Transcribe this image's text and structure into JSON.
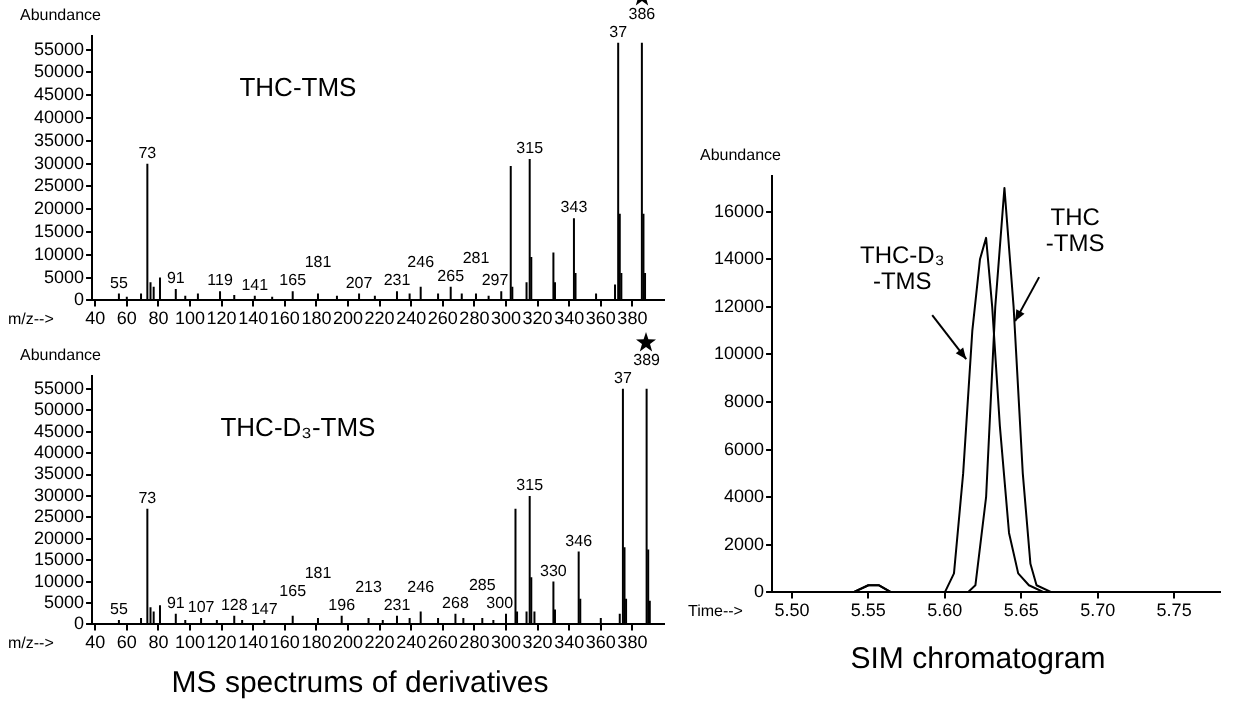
{
  "chart_data": [
    {
      "type": "bar",
      "title": "THC-TMS",
      "ylabel": "Abundance",
      "xlabel": "m/z-->",
      "color": "#000000",
      "grid": false,
      "x": [
        55,
        60,
        69,
        73,
        75,
        77,
        81,
        91,
        97,
        105,
        119,
        128,
        141,
        152,
        165,
        181,
        193,
        207,
        217,
        231,
        239,
        246,
        257,
        265,
        272,
        281,
        289,
        297,
        303,
        304,
        313,
        315,
        316,
        330,
        331,
        343,
        344,
        357,
        369,
        371,
        372,
        373,
        386,
        387,
        388
      ],
      "values": [
        1500,
        800,
        1500,
        30000,
        4000,
        3000,
        5000,
        2500,
        1000,
        1500,
        2000,
        1200,
        1000,
        800,
        2000,
        1500,
        1000,
        1500,
        1000,
        2000,
        1500,
        3000,
        1500,
        3000,
        1500,
        1500,
        1000,
        2000,
        29500,
        3000,
        4000,
        31000,
        9500,
        10500,
        4000,
        18000,
        6000,
        1500,
        3500,
        56500,
        19000,
        6000,
        56500,
        19000,
        6000
      ],
      "xlim": [
        38,
        400
      ],
      "xticks": [
        40,
        60,
        80,
        100,
        120,
        140,
        160,
        180,
        200,
        220,
        240,
        260,
        280,
        300,
        320,
        340,
        360,
        380
      ],
      "ylim": [
        0,
        58000
      ],
      "yticks": [
        0,
        5000,
        10000,
        15000,
        20000,
        25000,
        30000,
        35000,
        40000,
        45000,
        50000,
        55000
      ],
      "annotations": [
        {
          "text": "55",
          "x": 55,
          "y": 1500
        },
        {
          "text": "73",
          "x": 73,
          "y": 30000
        },
        {
          "text": "91",
          "x": 91,
          "y": 2500
        },
        {
          "text": "119",
          "x": 119,
          "y": 2000
        },
        {
          "text": "141",
          "x": 141,
          "y": 1000
        },
        {
          "text": "165",
          "x": 165,
          "y": 2000
        },
        {
          "text": "181",
          "x": 181,
          "y": 1500
        },
        {
          "text": "207",
          "x": 207,
          "y": 1500
        },
        {
          "text": "231",
          "x": 231,
          "y": 2000
        },
        {
          "text": "246",
          "x": 246,
          "y": 3000
        },
        {
          "text": "265",
          "x": 265,
          "y": 3000
        },
        {
          "text": "281",
          "x": 281,
          "y": 1500
        },
        {
          "text": "297",
          "x": 297,
          "y": 2000
        },
        {
          "text": "315",
          "x": 315,
          "y": 31000
        },
        {
          "text": "343",
          "x": 343,
          "y": 18000
        },
        {
          "text": "37",
          "x": 371,
          "y": 56500
        },
        {
          "text": "386",
          "x": 386,
          "y": 56500
        }
      ]
    },
    {
      "type": "bar",
      "title": "THC-D₃-TMS",
      "ylabel": "Abundance",
      "xlabel": "m/z-->",
      "color": "#000000",
      "grid": false,
      "x": [
        55,
        69,
        73,
        75,
        77,
        81,
        91,
        97,
        107,
        117,
        128,
        133,
        147,
        165,
        181,
        196,
        213,
        222,
        231,
        239,
        246,
        257,
        268,
        273,
        285,
        292,
        300,
        306,
        307,
        313,
        315,
        316,
        318,
        330,
        331,
        346,
        347,
        360,
        372,
        374,
        375,
        376,
        389,
        390,
        391
      ],
      "values": [
        1000,
        1500,
        27000,
        4000,
        3000,
        4500,
        2500,
        1000,
        1500,
        1000,
        2000,
        1000,
        1000,
        2000,
        1500,
        2000,
        1500,
        1000,
        2000,
        1500,
        3000,
        1500,
        2500,
        1500,
        1500,
        1000,
        2500,
        27000,
        3000,
        3000,
        30000,
        11000,
        3000,
        10000,
        3500,
        17000,
        6000,
        1500,
        2500,
        55000,
        18000,
        6000,
        55000,
        17500,
        5500
      ],
      "xlim": [
        38,
        400
      ],
      "xticks": [
        40,
        60,
        80,
        100,
        120,
        140,
        160,
        180,
        200,
        220,
        240,
        260,
        280,
        300,
        320,
        340,
        360,
        380
      ],
      "ylim": [
        0,
        58000
      ],
      "yticks": [
        0,
        5000,
        10000,
        15000,
        20000,
        25000,
        30000,
        35000,
        40000,
        45000,
        50000,
        55000
      ],
      "annotations": [
        {
          "text": "55",
          "x": 55,
          "y": 1000
        },
        {
          "text": "73",
          "x": 73,
          "y": 27000
        },
        {
          "text": "91",
          "x": 91,
          "y": 2500
        },
        {
          "text": "107",
          "x": 107,
          "y": 1500
        },
        {
          "text": "128",
          "x": 128,
          "y": 2000
        },
        {
          "text": "147",
          "x": 147,
          "y": 1000
        },
        {
          "text": "165",
          "x": 165,
          "y": 2000
        },
        {
          "text": "181",
          "x": 181,
          "y": 1500
        },
        {
          "text": "196",
          "x": 196,
          "y": 2000
        },
        {
          "text": "213",
          "x": 213,
          "y": 1500
        },
        {
          "text": "231",
          "x": 231,
          "y": 2000
        },
        {
          "text": "246",
          "x": 246,
          "y": 3000
        },
        {
          "text": "268",
          "x": 268,
          "y": 2500
        },
        {
          "text": "285",
          "x": 285,
          "y": 1500
        },
        {
          "text": "300",
          "x": 300,
          "y": 2500
        },
        {
          "text": "315",
          "x": 315,
          "y": 30000
        },
        {
          "text": "330",
          "x": 330,
          "y": 10000
        },
        {
          "text": "346",
          "x": 346,
          "y": 17000
        },
        {
          "text": "37",
          "x": 374,
          "y": 55000
        },
        {
          "text": "389",
          "x": 389,
          "y": 55000
        },
        "MS spectrums of derivatives"
      ]
    },
    {
      "type": "line",
      "ylabel": "Abundance",
      "xlabel": "Time-->",
      "grid": false,
      "marker": "none",
      "line_style": "solid",
      "series": [
        {
          "color": "#000000",
          "x": [
            5.487,
            5.54,
            5.55,
            5.557,
            5.565,
            5.6,
            5.606,
            5.612,
            5.618,
            5.623,
            5.627,
            5.631,
            5.636,
            5.642,
            5.648,
            5.655,
            5.665,
            5.675,
            5.78
          ],
          "values": [
            0,
            0,
            300,
            300,
            0,
            0,
            800,
            5000,
            11000,
            14000,
            14900,
            12000,
            7000,
            2500,
            800,
            300,
            0,
            0,
            0
          ]
        },
        {
          "color": "#000000",
          "x": [
            5.487,
            5.54,
            5.55,
            5.557,
            5.565,
            5.615,
            5.62,
            5.627,
            5.633,
            5.639,
            5.645,
            5.651,
            5.656,
            5.66,
            5.67,
            5.78
          ],
          "values": [
            0,
            0,
            300,
            300,
            0,
            0,
            300,
            4000,
            12000,
            17000,
            12000,
            5000,
            1200,
            300,
            0,
            0
          ]
        }
      ],
      "xlim": [
        5.487,
        5.78
      ],
      "xticks": [
        {
          "value": 5.5,
          "label": "5.50"
        },
        5.55,
        {
          "value": 5.6,
          "label": "5.60"
        },
        5.65,
        {
          "value": 5.7,
          "label": "5.70"
        },
        5.75
      ],
      "ylim": [
        0,
        17500
      ],
      "yticks": [
        0,
        2000,
        4000,
        6000,
        8000,
        10000,
        12000,
        14000,
        16000
      ],
      "annotations": [
        {
          "text": "THC-D₃\n-TMS",
          "x": 5.614,
          "y": 9800
        },
        {
          "text": "THC\n-TMS",
          "x": 5.646,
          "y": 11400
        },
        "SIM chromatogram"
      ]
    }
  ]
}
